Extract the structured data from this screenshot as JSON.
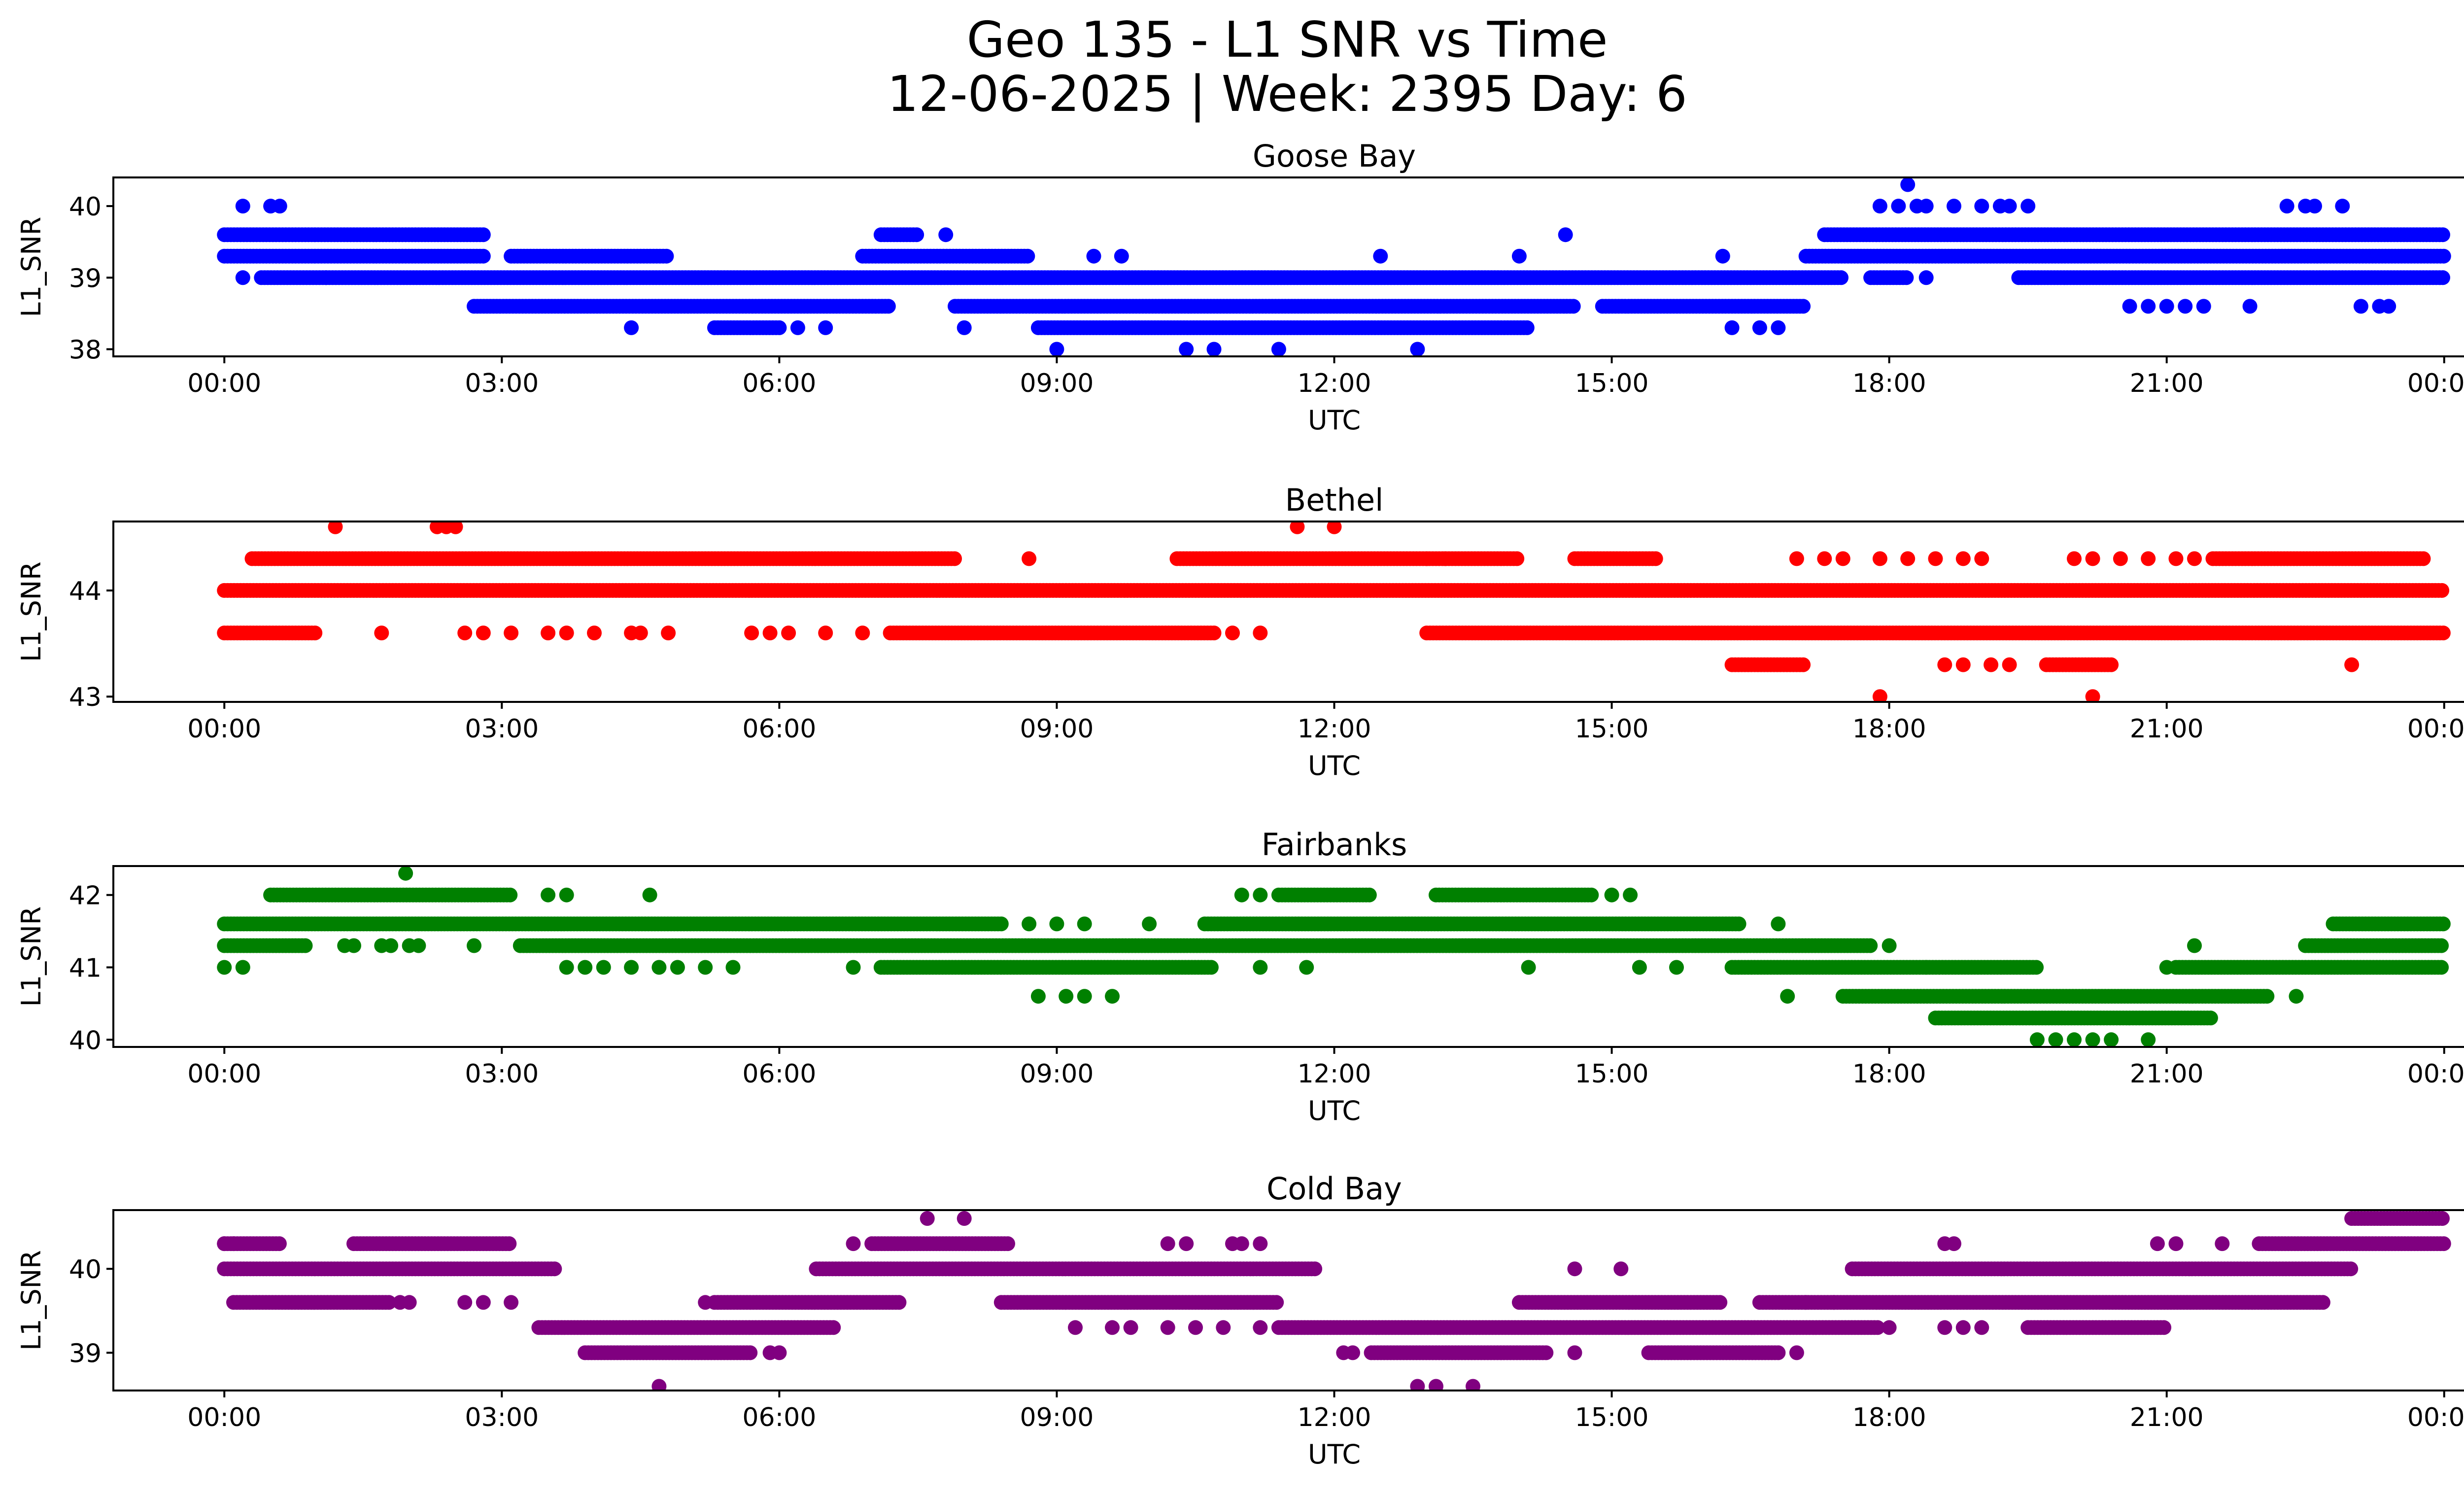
{
  "figure": {
    "title_line1": "Geo 135 - L1 SNR vs Time",
    "title_line2": "12-06-2025 | Week: 2395 Day: 6"
  },
  "chart_data": [
    {
      "type": "scatter",
      "title": "Goose Bay",
      "xlabel": "UTC",
      "ylabel": "L1_SNR",
      "color": "#0000ff",
      "x_unit": "hours since 00:00 UTC",
      "xlim": [
        -1.2,
        25.2
      ],
      "ylim": [
        37.9,
        40.4
      ],
      "xticks": [
        0,
        3,
        6,
        9,
        12,
        15,
        18,
        21,
        24
      ],
      "xtick_labels": [
        "00:00",
        "03:00",
        "06:00",
        "09:00",
        "12:00",
        "15:00",
        "18:00",
        "21:00",
        "00:00"
      ],
      "yticks": [
        38,
        39,
        40
      ],
      "ytick_labels": [
        "38",
        "39",
        "40"
      ],
      "bands": [
        {
          "y": 39.6,
          "segments": [
            [
              0,
              2.8
            ],
            [
              7.1,
              7.5
            ],
            [
              17.3,
              24
            ]
          ]
        },
        {
          "y": 39.3,
          "segments": [
            [
              0,
              2.8
            ],
            [
              3.1,
              4.8
            ],
            [
              6.9,
              8.7
            ],
            [
              17.1,
              24
            ]
          ]
        },
        {
          "y": 39.0,
          "segments": [
            [
              0.4,
              17.5
            ],
            [
              17.8,
              18.2
            ],
            [
              19.4,
              24
            ]
          ]
        },
        {
          "y": 38.6,
          "segments": [
            [
              2.7,
              7.2
            ],
            [
              7.9,
              14.6
            ],
            [
              14.9,
              17.1
            ]
          ]
        },
        {
          "y": 38.3,
          "segments": [
            [
              5.3,
              6.0
            ],
            [
              8.8,
              14.1
            ]
          ]
        }
      ],
      "points": [
        [
          0.2,
          40.0
        ],
        [
          0.5,
          40.0
        ],
        [
          0.6,
          40.0
        ],
        [
          0.2,
          39.0
        ],
        [
          1.1,
          39.0
        ],
        [
          4.4,
          38.3
        ],
        [
          6.2,
          38.3
        ],
        [
          6.5,
          38.3
        ],
        [
          8.0,
          38.3
        ],
        [
          9.0,
          38.0
        ],
        [
          10.4,
          38.0
        ],
        [
          10.7,
          38.0
        ],
        [
          11.4,
          38.0
        ],
        [
          12.9,
          38.0
        ],
        [
          12.5,
          39.3
        ],
        [
          9.4,
          39.3
        ],
        [
          9.7,
          39.3
        ],
        [
          7.8,
          39.6
        ],
        [
          14.0,
          39.3
        ],
        [
          14.5,
          39.6
        ],
        [
          16.2,
          39.3
        ],
        [
          16.3,
          38.3
        ],
        [
          16.6,
          38.3
        ],
        [
          16.8,
          38.3
        ],
        [
          18.2,
          40.3
        ],
        [
          17.9,
          40.0
        ],
        [
          18.1,
          40.0
        ],
        [
          18.3,
          40.0
        ],
        [
          18.4,
          40.0
        ],
        [
          18.7,
          40.0
        ],
        [
          19.0,
          40.0
        ],
        [
          19.2,
          40.0
        ],
        [
          19.3,
          40.0
        ],
        [
          19.5,
          40.0
        ],
        [
          18.4,
          39.0
        ],
        [
          20.6,
          38.6
        ],
        [
          20.8,
          38.6
        ],
        [
          21.0,
          38.6
        ],
        [
          21.2,
          38.6
        ],
        [
          21.4,
          38.6
        ],
        [
          21.9,
          38.6
        ],
        [
          22.3,
          40.0
        ],
        [
          22.5,
          40.0
        ],
        [
          22.6,
          40.0
        ],
        [
          22.9,
          40.0
        ],
        [
          23.1,
          38.6
        ],
        [
          23.3,
          38.6
        ],
        [
          23.4,
          38.6
        ]
      ]
    },
    {
      "type": "scatter",
      "title": "Bethel",
      "xlabel": "UTC",
      "ylabel": "L1_SNR",
      "color": "#ff0000",
      "x_unit": "hours since 00:00 UTC",
      "xlim": [
        -1.2,
        25.2
      ],
      "ylim": [
        42.95,
        44.65
      ],
      "xticks": [
        0,
        3,
        6,
        9,
        12,
        15,
        18,
        21,
        24
      ],
      "xtick_labels": [
        "00:00",
        "03:00",
        "06:00",
        "09:00",
        "12:00",
        "15:00",
        "18:00",
        "21:00",
        "00:00"
      ],
      "yticks": [
        43,
        44
      ],
      "ytick_labels": [
        "43",
        "44"
      ],
      "bands": [
        {
          "y": 44.3,
          "segments": [
            [
              0.3,
              7.9
            ],
            [
              10.3,
              14.0
            ],
            [
              14.6,
              15.5
            ],
            [
              21.5,
              23.8
            ]
          ]
        },
        {
          "y": 44.0,
          "segments": [
            [
              0,
              24
            ]
          ]
        },
        {
          "y": 43.6,
          "segments": [
            [
              0,
              1.0
            ],
            [
              7.2,
              10.7
            ],
            [
              13.0,
              24
            ]
          ]
        },
        {
          "y": 43.3,
          "segments": [
            [
              16.3,
              17.1
            ],
            [
              19.7,
              20.4
            ]
          ]
        }
      ],
      "points": [
        [
          1.2,
          44.6
        ],
        [
          2.3,
          44.6
        ],
        [
          2.4,
          44.6
        ],
        [
          2.5,
          44.6
        ],
        [
          11.6,
          44.6
        ],
        [
          12.0,
          44.6
        ],
        [
          8.7,
          44.3
        ],
        [
          13.0,
          44.3
        ],
        [
          13.2,
          44.3
        ],
        [
          17.0,
          44.3
        ],
        [
          17.3,
          44.3
        ],
        [
          17.5,
          44.3
        ],
        [
          17.9,
          44.3
        ],
        [
          18.2,
          44.3
        ],
        [
          18.5,
          44.3
        ],
        [
          18.8,
          44.3
        ],
        [
          19.0,
          44.3
        ],
        [
          20.0,
          44.3
        ],
        [
          20.2,
          44.3
        ],
        [
          20.5,
          44.3
        ],
        [
          20.8,
          44.3
        ],
        [
          21.1,
          44.3
        ],
        [
          21.3,
          44.3
        ],
        [
          1.7,
          43.6
        ],
        [
          2.6,
          43.6
        ],
        [
          2.8,
          43.6
        ],
        [
          3.1,
          43.6
        ],
        [
          3.5,
          43.6
        ],
        [
          3.7,
          43.6
        ],
        [
          4.0,
          43.6
        ],
        [
          4.4,
          43.6
        ],
        [
          4.5,
          43.6
        ],
        [
          4.8,
          43.6
        ],
        [
          5.7,
          43.6
        ],
        [
          5.9,
          43.6
        ],
        [
          6.1,
          43.6
        ],
        [
          6.5,
          43.6
        ],
        [
          6.9,
          43.6
        ],
        [
          10.9,
          43.6
        ],
        [
          11.2,
          43.6
        ],
        [
          18.6,
          43.3
        ],
        [
          18.8,
          43.3
        ],
        [
          19.1,
          43.3
        ],
        [
          19.3,
          43.3
        ],
        [
          23.0,
          43.3
        ],
        [
          17.9,
          43.0
        ],
        [
          20.2,
          43.0
        ]
      ]
    },
    {
      "type": "scatter",
      "title": "Fairbanks",
      "xlabel": "UTC",
      "ylabel": "L1_SNR",
      "color": "#008000",
      "x_unit": "hours since 00:00 UTC",
      "xlim": [
        -1.2,
        25.2
      ],
      "ylim": [
        39.9,
        42.4
      ],
      "xticks": [
        0,
        3,
        6,
        9,
        12,
        15,
        18,
        21,
        24
      ],
      "xtick_labels": [
        "00:00",
        "03:00",
        "06:00",
        "09:00",
        "12:00",
        "15:00",
        "18:00",
        "21:00",
        "00:00"
      ],
      "yticks": [
        40,
        41,
        42
      ],
      "ytick_labels": [
        "40",
        "41",
        "42"
      ],
      "bands": [
        {
          "y": 42.0,
          "segments": [
            [
              0.5,
              3.1
            ],
            [
              11.4,
              12.4
            ],
            [
              13.1,
              14.8
            ]
          ]
        },
        {
          "y": 41.6,
          "segments": [
            [
              0,
              8.4
            ],
            [
              10.6,
              16.4
            ],
            [
              22.8,
              24
            ]
          ]
        },
        {
          "y": 41.3,
          "segments": [
            [
              0,
              0.9
            ],
            [
              3.2,
              17.8
            ],
            [
              22.5,
              24
            ]
          ]
        },
        {
          "y": 41.0,
          "segments": [
            [
              7.1,
              10.7
            ],
            [
              16.3,
              19.6
            ],
            [
              21.1,
              24
            ]
          ]
        },
        {
          "y": 40.6,
          "segments": [
            [
              17.5,
              22.1
            ]
          ]
        },
        {
          "y": 40.3,
          "segments": [
            [
              18.5,
              21.5
            ]
          ]
        }
      ],
      "points": [
        [
          0.0,
          41.0
        ],
        [
          0.2,
          41.0
        ],
        [
          1.3,
          41.3
        ],
        [
          1.4,
          41.3
        ],
        [
          1.7,
          41.3
        ],
        [
          1.8,
          41.3
        ],
        [
          2.0,
          41.3
        ],
        [
          2.1,
          41.3
        ],
        [
          2.7,
          41.3
        ],
        [
          1.96,
          42.3
        ],
        [
          3.5,
          42.0
        ],
        [
          3.7,
          42.0
        ],
        [
          4.6,
          42.0
        ],
        [
          11.0,
          42.0
        ],
        [
          11.2,
          42.0
        ],
        [
          15.0,
          42.0
        ],
        [
          15.2,
          42.0
        ],
        [
          3.7,
          41.0
        ],
        [
          3.9,
          41.0
        ],
        [
          4.1,
          41.0
        ],
        [
          4.4,
          41.0
        ],
        [
          4.7,
          41.0
        ],
        [
          4.9,
          41.0
        ],
        [
          5.2,
          41.0
        ],
        [
          5.5,
          41.0
        ],
        [
          6.8,
          41.0
        ],
        [
          11.2,
          41.0
        ],
        [
          11.7,
          41.0
        ],
        [
          14.1,
          41.0
        ],
        [
          15.3,
          41.0
        ],
        [
          15.7,
          41.0
        ],
        [
          8.7,
          41.6
        ],
        [
          9.0,
          41.6
        ],
        [
          9.3,
          41.6
        ],
        [
          10.0,
          41.6
        ],
        [
          16.8,
          41.6
        ],
        [
          8.8,
          40.6
        ],
        [
          9.1,
          40.6
        ],
        [
          9.3,
          40.6
        ],
        [
          9.6,
          40.6
        ],
        [
          16.9,
          40.6
        ],
        [
          19.6,
          40.0
        ],
        [
          19.8,
          40.0
        ],
        [
          20.0,
          40.0
        ],
        [
          20.2,
          40.0
        ],
        [
          20.4,
          40.0
        ],
        [
          20.8,
          40.0
        ],
        [
          21.0,
          41.0
        ],
        [
          21.3,
          41.3
        ],
        [
          22.4,
          40.6
        ],
        [
          18.0,
          41.3
        ],
        [
          18.4,
          41.0
        ]
      ]
    },
    {
      "type": "scatter",
      "title": "Cold Bay",
      "xlabel": "UTC",
      "ylabel": "L1_SNR",
      "color": "#800080",
      "x_unit": "hours since 00:00 UTC",
      "xlim": [
        -1.2,
        25.2
      ],
      "ylim": [
        38.55,
        40.7
      ],
      "xticks": [
        0,
        3,
        6,
        9,
        12,
        15,
        18,
        21,
        24
      ],
      "xtick_labels": [
        "00:00",
        "03:00",
        "06:00",
        "09:00",
        "12:00",
        "15:00",
        "18:00",
        "21:00",
        "00:00"
      ],
      "yticks": [
        39,
        40
      ],
      "ytick_labels": [
        "39",
        "40"
      ],
      "bands": [
        {
          "y": 40.6,
          "segments": [
            [
              23.0,
              24
            ]
          ]
        },
        {
          "y": 40.3,
          "segments": [
            [
              0,
              0.6
            ],
            [
              1.4,
              3.1
            ],
            [
              7.0,
              8.5
            ],
            [
              22.0,
              24
            ]
          ]
        },
        {
          "y": 40.0,
          "segments": [
            [
              0,
              3.6
            ],
            [
              6.4,
              11.8
            ],
            [
              17.6,
              23.0
            ]
          ]
        },
        {
          "y": 39.6,
          "segments": [
            [
              0.1,
              1.8
            ],
            [
              5.3,
              7.3
            ],
            [
              8.4,
              11.4
            ],
            [
              14.0,
              16.2
            ],
            [
              16.6,
              22.7
            ]
          ]
        },
        {
          "y": 39.3,
          "segments": [
            [
              3.4,
              6.6
            ],
            [
              11.4,
              17.9
            ],
            [
              19.5,
              21.0
            ]
          ]
        },
        {
          "y": 39.0,
          "segments": [
            [
              3.9,
              5.7
            ],
            [
              12.4,
              14.3
            ],
            [
              15.4,
              16.8
            ]
          ]
        }
      ],
      "points": [
        [
          7.6,
          40.6
        ],
        [
          8.0,
          40.6
        ],
        [
          6.8,
          40.3
        ],
        [
          10.2,
          40.3
        ],
        [
          10.4,
          40.3
        ],
        [
          10.9,
          40.3
        ],
        [
          11.0,
          40.3
        ],
        [
          11.2,
          40.3
        ],
        [
          14.6,
          40.0
        ],
        [
          15.1,
          40.0
        ],
        [
          18.6,
          40.3
        ],
        [
          18.7,
          40.3
        ],
        [
          20.9,
          40.3
        ],
        [
          21.1,
          40.3
        ],
        [
          21.6,
          40.3
        ],
        [
          1.9,
          39.6
        ],
        [
          2.0,
          39.6
        ],
        [
          2.6,
          39.6
        ],
        [
          2.8,
          39.6
        ],
        [
          3.1,
          39.6
        ],
        [
          5.2,
          39.6
        ],
        [
          9.2,
          39.3
        ],
        [
          9.6,
          39.3
        ],
        [
          9.8,
          39.3
        ],
        [
          10.2,
          39.3
        ],
        [
          10.5,
          39.3
        ],
        [
          10.8,
          39.3
        ],
        [
          11.2,
          39.3
        ],
        [
          18.0,
          39.3
        ],
        [
          18.6,
          39.3
        ],
        [
          18.8,
          39.3
        ],
        [
          19.0,
          39.3
        ],
        [
          12.1,
          39.0
        ],
        [
          12.2,
          39.0
        ],
        [
          14.6,
          39.0
        ],
        [
          17.0,
          39.0
        ],
        [
          5.9,
          39.0
        ],
        [
          6.0,
          39.0
        ],
        [
          4.7,
          38.6
        ],
        [
          12.9,
          38.6
        ],
        [
          13.1,
          38.6
        ],
        [
          13.5,
          38.6
        ],
        [
          0.0,
          40.3
        ],
        [
          0.1,
          40.3
        ],
        [
          17.1,
          39.6
        ],
        [
          17.4,
          39.6
        ]
      ]
    }
  ]
}
